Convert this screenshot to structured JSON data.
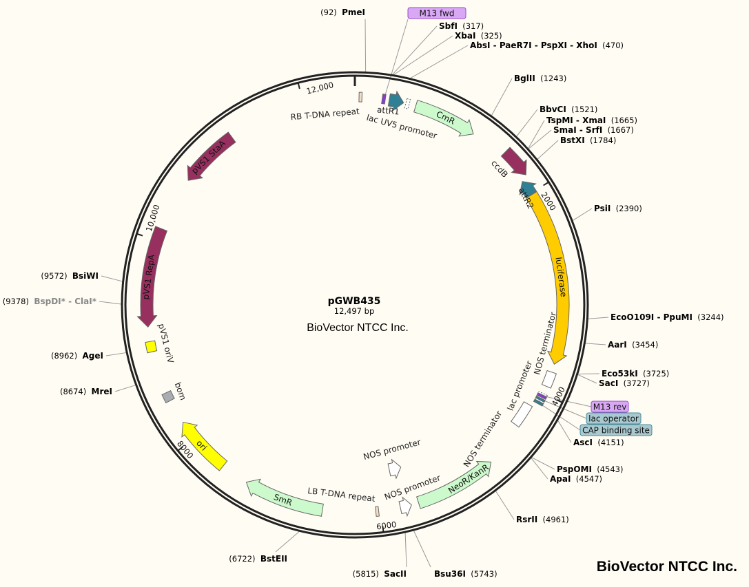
{
  "plasmid": {
    "name": "pGWB435",
    "length_label": "12,497 bp",
    "company": "BioVector NTCC Inc.",
    "length_bp": 12497
  },
  "watermark": "BioVector NTCC Inc.",
  "colors": {
    "background": "#fffcf3",
    "backbone": "#222222",
    "pvs1": "#97305f",
    "marker": "#ccfacc",
    "luciferase": "#ffcc00",
    "ori": "#ffff00",
    "att": "#2f8095",
    "primer": "#d9a8f5",
    "operator": "#a9c9d1"
  },
  "ticks": [
    {
      "bp": 0,
      "label": ""
    },
    {
      "bp": 2000,
      "label": "2000"
    },
    {
      "bp": 4000,
      "label": "4000"
    },
    {
      "bp": 6000,
      "label": "6000"
    },
    {
      "bp": 8000,
      "label": "8000"
    },
    {
      "bp": 10000,
      "label": "10,000"
    },
    {
      "bp": 12000,
      "label": "12,000"
    }
  ],
  "features": [
    {
      "name": "RB T-DNA repeat",
      "start": 40,
      "end": 68,
      "type": "box",
      "fill": "#f5dcc0"
    },
    {
      "name": "M13 fwd",
      "start": 262,
      "end": 292,
      "type": "box",
      "fill": "#8a3ad0",
      "hide_label": true
    },
    {
      "name": "attR1",
      "start": 330,
      "end": 470,
      "type": "arrow",
      "dir": 1,
      "fill": "#2f8095"
    },
    {
      "name": "lac UV5 promoter",
      "start": 492,
      "end": 525,
      "type": "dashed",
      "fill": "#ffffff"
    },
    {
      "name": "CmR",
      "start": 590,
      "end": 1205,
      "type": "arrow",
      "dir": 1,
      "fill": "#ccfacc",
      "inner": true
    },
    {
      "name": "ccdB",
      "start": 1545,
      "end": 1830,
      "type": "arrow",
      "dir": 1,
      "fill": "#97305f",
      "r": 312
    },
    {
      "name": "attR2",
      "start": 1860,
      "end": 2010,
      "type": "arrow",
      "dir": -1,
      "fill": "#2f8095"
    },
    {
      "name": "luciferase",
      "start": 2015,
      "end": 3700,
      "type": "arrow",
      "dir": 1,
      "fill": "#ffcc00",
      "inner": true
    },
    {
      "name": "NOS terminator",
      "start": 3780,
      "end": 3925,
      "type": "box",
      "fill": "#ffffff"
    },
    {
      "name": "lac promoter",
      "start": 4000,
      "end": 4100,
      "type": "dashed",
      "fill": "#ffffff"
    },
    {
      "name": "M13 rev",
      "start": 4015,
      "end": 4040,
      "type": "box",
      "fill": "#8a3ad0",
      "hide_label": true
    },
    {
      "name": "lac operator",
      "start": 4050,
      "end": 4070,
      "type": "box",
      "fill": "#2f8095",
      "hide_label": true
    },
    {
      "name": "CAP binding site",
      "start": 4085,
      "end": 4110,
      "type": "box",
      "fill": "#2f8095",
      "hide_label": true
    },
    {
      "name": "NOS terminator",
      "start": 4160,
      "end": 4400,
      "type": "box",
      "fill": "#ffffff",
      "r": 290
    },
    {
      "name": "NeoR/KanR",
      "start": 4830,
      "end": 5630,
      "type": "arrow",
      "dir": -1,
      "fill": "#ccfacc",
      "inner": true
    },
    {
      "name": "NOS promoter",
      "start": 5700,
      "end": 5810,
      "type": "arrow",
      "dir": -1,
      "fill": "#ffffff"
    },
    {
      "name": "NOS promoter",
      "start": 5700,
      "end": 5840,
      "type": "arrow",
      "dir": -1,
      "fill": "#ffffff",
      "r": 245
    },
    {
      "name": "LB T-DNA repeat",
      "start": 6020,
      "end": 6048,
      "type": "box",
      "fill": "#f5dcc0"
    },
    {
      "name": "SmR",
      "start": 6560,
      "end": 7340,
      "type": "arrow",
      "dir": 1,
      "fill": "#ccfacc",
      "inner": true
    },
    {
      "name": "ori",
      "start": 7610,
      "end": 8180,
      "type": "arrow",
      "dir": 1,
      "fill": "#ffff00",
      "inner": true
    },
    {
      "name": "bom",
      "start": 8420,
      "end": 8505,
      "type": "box",
      "fill": "#a9adb2"
    },
    {
      "name": "pVS1 oriV",
      "start": 8920,
      "end": 9020,
      "type": "box",
      "fill": "#ffff00"
    },
    {
      "name": "pVS1 RepA",
      "start": 9160,
      "end": 10120,
      "type": "arrow",
      "dir": -1,
      "fill": "#97305f",
      "inner": true,
      "light": true
    },
    {
      "name": "pVS1 StaA",
      "start": 10650,
      "end": 11240,
      "type": "arrow",
      "dir": -1,
      "fill": "#97305f",
      "inner": true,
      "light": true
    }
  ],
  "sites": [
    {
      "name": "PmeI",
      "pos": 92,
      "side": "left"
    },
    {
      "name": "SbfI",
      "pos": 317,
      "side": "right"
    },
    {
      "name": "XbaI",
      "pos": 325,
      "side": "right"
    },
    {
      "name": "AbsI - PaeR7I - PspXI - XhoI",
      "pos": 470,
      "side": "right"
    },
    {
      "name": "BglII",
      "pos": 1243,
      "side": "right"
    },
    {
      "name": "BbvCI",
      "pos": 1521,
      "side": "right"
    },
    {
      "name": "TspMI - XmaI",
      "pos": 1665,
      "side": "right"
    },
    {
      "name": "SmaI - SrfI",
      "pos": 1667,
      "side": "right"
    },
    {
      "name": "BstXI",
      "pos": 1784,
      "side": "right"
    },
    {
      "name": "PsiI",
      "pos": 2390,
      "side": "right"
    },
    {
      "name": "EcoO109I - PpuMI",
      "pos": 3244,
      "side": "right"
    },
    {
      "name": "AarI",
      "pos": 3454,
      "side": "right"
    },
    {
      "name": "Eco53kI",
      "pos": 3725,
      "side": "right"
    },
    {
      "name": "SacI",
      "pos": 3727,
      "side": "right"
    },
    {
      "name": "AscI",
      "pos": 4151,
      "side": "right"
    },
    {
      "name": "PspOMI",
      "pos": 4543,
      "side": "right"
    },
    {
      "name": "ApaI",
      "pos": 4547,
      "side": "right"
    },
    {
      "name": "RsrII",
      "pos": 4961,
      "side": "right"
    },
    {
      "name": "Bsu36I",
      "pos": 5743,
      "side": "right"
    },
    {
      "name": "SacII",
      "pos": 5815,
      "side": "left"
    },
    {
      "name": "BstEII",
      "pos": 6722,
      "side": "left"
    },
    {
      "name": "MreI",
      "pos": 8674,
      "side": "left"
    },
    {
      "name": "AgeI",
      "pos": 8962,
      "side": "left"
    },
    {
      "name": "BspDI* - ClaI*",
      "pos": 9378,
      "side": "left",
      "dim": true
    },
    {
      "name": "BsiWI",
      "pos": 9572,
      "side": "left"
    }
  ],
  "callouts": [
    {
      "label": "M13 fwd",
      "pos": 277,
      "fill": "#d9a8f5",
      "stroke": "#9a4ccc"
    },
    {
      "label": "M13 rev",
      "pos": 4028,
      "fill": "#d9a8f5",
      "stroke": "#9a4ccc"
    },
    {
      "label": "lac operator",
      "pos": 4060,
      "fill": "#a9c9d1",
      "stroke": "#4b8a99"
    },
    {
      "label": "CAP binding site",
      "pos": 4098,
      "fill": "#a9c9d1",
      "stroke": "#4b8a99"
    }
  ]
}
